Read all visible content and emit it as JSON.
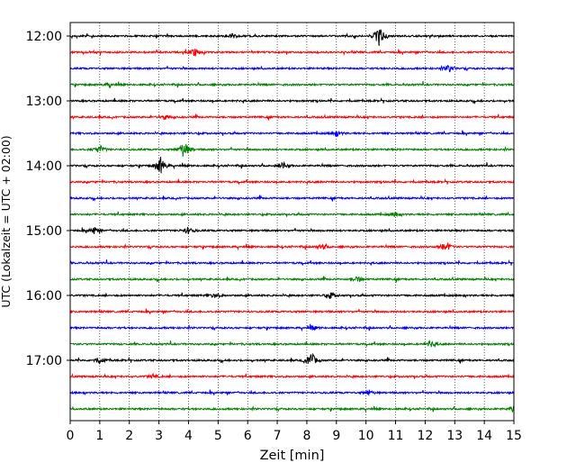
{
  "chart_data": {
    "type": "line",
    "title": "",
    "xlabel": "Zeit  [min]",
    "ylabel": "UTC (Lokalzeit = UTC + 02:00)",
    "xlim": [
      0,
      15
    ],
    "x_ticks": [
      0,
      1,
      2,
      3,
      4,
      5,
      6,
      7,
      8,
      9,
      10,
      11,
      12,
      13,
      14,
      15
    ],
    "x_tick_labels": [
      "0",
      "1",
      "2",
      "3",
      "4",
      "5",
      "6",
      "7",
      "8",
      "9",
      "10",
      "11",
      "12",
      "13",
      "14",
      "15"
    ],
    "y_tick_labels": [
      "12:00",
      "13:00",
      "14:00",
      "15:00",
      "16:00",
      "17:00"
    ],
    "grid": "vertical-dotted",
    "color_cycle": [
      "#000000",
      "#ff0000",
      "#0000ff",
      "#008000"
    ],
    "traces": [
      {
        "start": "12:00",
        "color": "#000000",
        "events": [
          {
            "t": 10.45,
            "amp": 1.0
          },
          {
            "t": 5.5,
            "amp": 0.25
          }
        ]
      },
      {
        "start": "12:15",
        "color": "#ff0000",
        "events": [
          {
            "t": 4.2,
            "amp": 0.4
          }
        ]
      },
      {
        "start": "12:30",
        "color": "#0000ff",
        "events": [
          {
            "t": 12.8,
            "amp": 0.35
          }
        ]
      },
      {
        "start": "12:45",
        "color": "#008000",
        "events": [
          {
            "t": 1.3,
            "amp": 0.2
          }
        ]
      },
      {
        "start": "13:00",
        "color": "#000000",
        "events": []
      },
      {
        "start": "13:15",
        "color": "#ff0000",
        "events": [
          {
            "t": 3.2,
            "amp": 0.25
          }
        ]
      },
      {
        "start": "13:30",
        "color": "#0000ff",
        "events": [
          {
            "t": 9.0,
            "amp": 0.3
          }
        ]
      },
      {
        "start": "13:45",
        "color": "#008000",
        "events": [
          {
            "t": 1.0,
            "amp": 0.45
          },
          {
            "t": 3.85,
            "amp": 0.9
          }
        ]
      },
      {
        "start": "14:00",
        "color": "#000000",
        "events": [
          {
            "t": 3.05,
            "amp": 0.85
          },
          {
            "t": 7.2,
            "amp": 0.3
          }
        ]
      },
      {
        "start": "14:15",
        "color": "#ff0000",
        "events": []
      },
      {
        "start": "14:30",
        "color": "#0000ff",
        "events": []
      },
      {
        "start": "14:45",
        "color": "#008000",
        "events": [
          {
            "t": 11.0,
            "amp": 0.25
          }
        ]
      },
      {
        "start": "15:00",
        "color": "#000000",
        "events": [
          {
            "t": 0.8,
            "amp": 0.35
          },
          {
            "t": 4.0,
            "amp": 0.35
          }
        ]
      },
      {
        "start": "15:15",
        "color": "#ff0000",
        "events": [
          {
            "t": 12.7,
            "amp": 0.55
          },
          {
            "t": 8.5,
            "amp": 0.25
          }
        ]
      },
      {
        "start": "15:30",
        "color": "#0000ff",
        "events": []
      },
      {
        "start": "15:45",
        "color": "#008000",
        "events": [
          {
            "t": 9.7,
            "amp": 0.3
          }
        ]
      },
      {
        "start": "16:00",
        "color": "#000000",
        "events": [
          {
            "t": 8.8,
            "amp": 0.3
          },
          {
            "t": 4.9,
            "amp": 0.25
          }
        ]
      },
      {
        "start": "16:15",
        "color": "#ff0000",
        "events": []
      },
      {
        "start": "16:30",
        "color": "#0000ff",
        "events": [
          {
            "t": 8.2,
            "amp": 0.2
          }
        ]
      },
      {
        "start": "16:45",
        "color": "#008000",
        "events": [
          {
            "t": 12.2,
            "amp": 0.3
          }
        ]
      },
      {
        "start": "17:00",
        "color": "#000000",
        "events": [
          {
            "t": 8.15,
            "amp": 0.8
          },
          {
            "t": 1.0,
            "amp": 0.3
          }
        ]
      },
      {
        "start": "17:15",
        "color": "#ff0000",
        "events": [
          {
            "t": 2.8,
            "amp": 0.2
          }
        ]
      },
      {
        "start": "17:30",
        "color": "#0000ff",
        "events": [
          {
            "t": 10.1,
            "amp": 0.25
          }
        ]
      },
      {
        "start": "17:45",
        "color": "#008000",
        "events": [
          {
            "t": 15.0,
            "amp": 0.3
          }
        ]
      }
    ]
  }
}
